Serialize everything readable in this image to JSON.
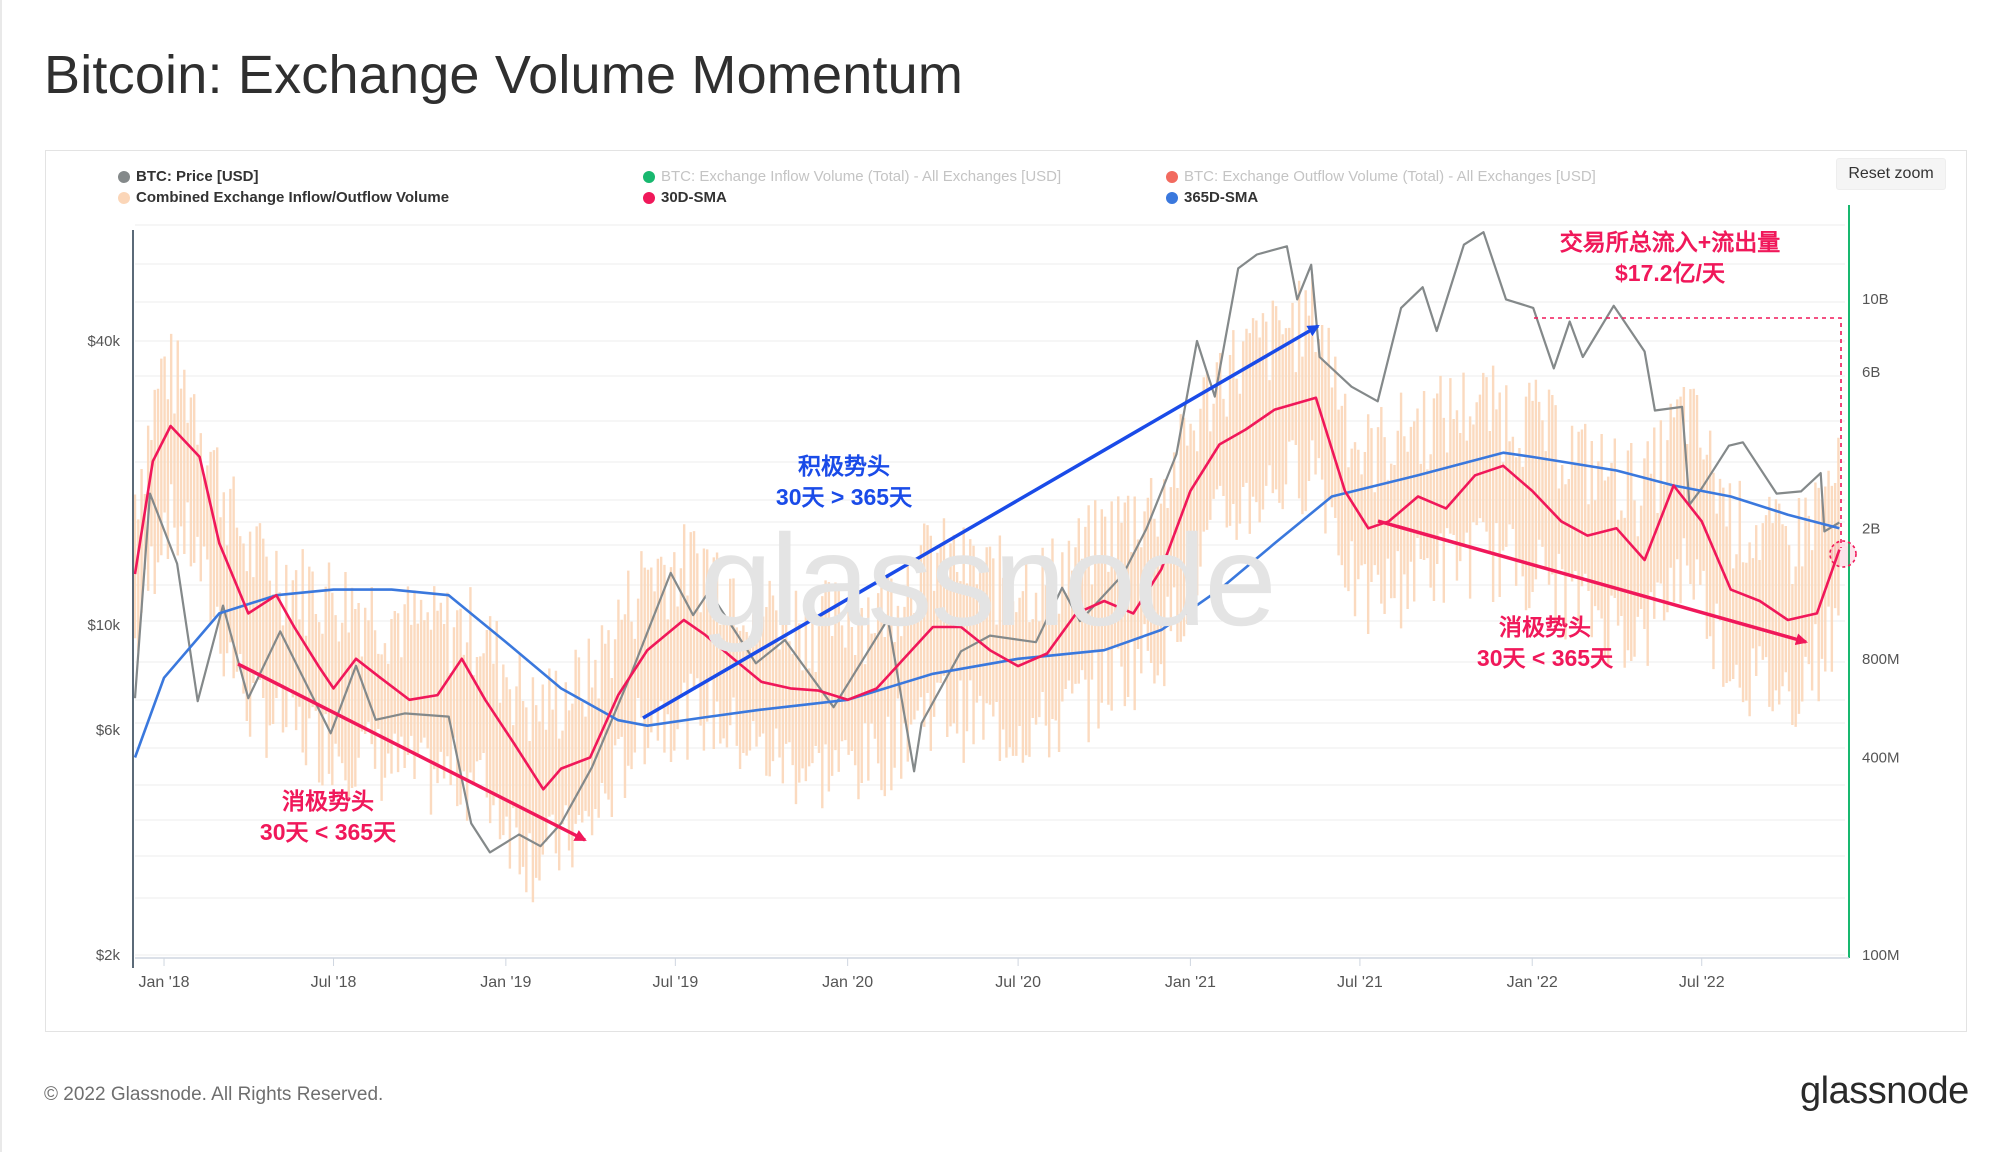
{
  "page": {
    "title": "Bitcoin: Exchange Volume Momentum",
    "reset_zoom": "Reset zoom",
    "watermark": "glassnode",
    "footer_copyright": "© 2022 Glassnode. All Rights Reserved.",
    "footer_logo": "glassnode"
  },
  "legend": [
    {
      "label": "BTC: Price [USD]",
      "color": "#84898a",
      "active": true
    },
    {
      "label": "BTC: Exchange Inflow Volume (Total) - All Exchanges [USD]",
      "color": "#18b86f",
      "active": false
    },
    {
      "label": "BTC: Exchange Outflow Volume (Total) - All Exchanges [USD]",
      "color": "#f26a5f",
      "active": false
    },
    {
      "label": "Combined Exchange Inflow/Outflow Volume",
      "color": "#fbd6b8",
      "active": true
    },
    {
      "label": "30D-SMA",
      "color": "#f0185a",
      "active": true
    },
    {
      "label": "365D-SMA",
      "color": "#3a78dd",
      "active": true
    }
  ],
  "annotations": {
    "neg1_line1": "消极势头",
    "neg1_line2": "30天 < 365天",
    "pos_line1": "积极势头",
    "pos_line2": "30天 > 365天",
    "neg2_line1": "消极势头",
    "neg2_line2": "30天 < 365天",
    "total_line1": "交易所总流入+流出量",
    "total_line2": "$17.2亿/天"
  },
  "chart_data": {
    "type": "line",
    "x_axis": {
      "type": "date",
      "range": [
        "2017-12-01",
        "2022-12-01"
      ],
      "ticks": [
        "Jan '18",
        "Jul '18",
        "Jan '19",
        "Jul '19",
        "Jan '20",
        "Jul '20",
        "Jan '21",
        "Jul '21",
        "Jan '22",
        "Jul '22"
      ]
    },
    "y_left": {
      "scale": "log",
      "unit": "USD",
      "ticks": [
        "$2k",
        "$6k",
        "$10k",
        "$40k"
      ],
      "range": [
        2000,
        80000
      ]
    },
    "y_right": {
      "scale": "log",
      "unit": "USD",
      "ticks": [
        "100M",
        "400M",
        "800M",
        "2B",
        "6B",
        "10B"
      ],
      "range": [
        100000000,
        15000000000
      ]
    },
    "series": [
      {
        "name": "BTC: Price [USD]",
        "axis": "left",
        "points": [
          [
            "2017-12-01",
            7000
          ],
          [
            "2017-12-17",
            19000
          ],
          [
            "2018-01-15",
            13500
          ],
          [
            "2018-02-06",
            6900
          ],
          [
            "2018-03-05",
            11000
          ],
          [
            "2018-04-01",
            7000
          ],
          [
            "2018-05-05",
            9700
          ],
          [
            "2018-06-28",
            5900
          ],
          [
            "2018-07-25",
            8200
          ],
          [
            "2018-08-15",
            6300
          ],
          [
            "2018-09-15",
            6500
          ],
          [
            "2018-11-01",
            6400
          ],
          [
            "2018-11-25",
            3800
          ],
          [
            "2018-12-15",
            3300
          ],
          [
            "2019-01-15",
            3600
          ],
          [
            "2019-02-07",
            3400
          ],
          [
            "2019-03-01",
            3800
          ],
          [
            "2019-04-03",
            5000
          ],
          [
            "2019-05-15",
            7900
          ],
          [
            "2019-06-26",
            12900
          ],
          [
            "2019-07-20",
            10500
          ],
          [
            "2019-08-06",
            11800
          ],
          [
            "2019-09-25",
            8300
          ],
          [
            "2019-10-26",
            9300
          ],
          [
            "2019-12-17",
            6700
          ],
          [
            "2020-02-13",
            10300
          ],
          [
            "2020-03-12",
            4900
          ],
          [
            "2020-03-20",
            6200
          ],
          [
            "2020-05-01",
            8800
          ],
          [
            "2020-06-01",
            9500
          ],
          [
            "2020-07-20",
            9200
          ],
          [
            "2020-08-17",
            12000
          ],
          [
            "2020-09-05",
            10200
          ],
          [
            "2020-10-21",
            12800
          ],
          [
            "2020-11-15",
            16000
          ],
          [
            "2020-12-17",
            23000
          ],
          [
            "2021-01-08",
            40000
          ],
          [
            "2021-01-27",
            30500
          ],
          [
            "2021-02-21",
            57000
          ],
          [
            "2021-03-13",
            61000
          ],
          [
            "2021-04-14",
            63500
          ],
          [
            "2021-04-25",
            49000
          ],
          [
            "2021-05-10",
            58000
          ],
          [
            "2021-05-19",
            37000
          ],
          [
            "2021-06-22",
            32000
          ],
          [
            "2021-07-20",
            29800
          ],
          [
            "2021-08-14",
            47000
          ],
          [
            "2021-09-06",
            52000
          ],
          [
            "2021-09-21",
            42000
          ],
          [
            "2021-10-20",
            64000
          ],
          [
            "2021-11-10",
            68000
          ],
          [
            "2021-12-04",
            49000
          ],
          [
            "2022-01-02",
            47000
          ],
          [
            "2022-01-24",
            35000
          ],
          [
            "2022-02-10",
            44000
          ],
          [
            "2022-02-24",
            37000
          ],
          [
            "2022-03-29",
            47500
          ],
          [
            "2022-05-01",
            38000
          ],
          [
            "2022-05-12",
            28500
          ],
          [
            "2022-06-10",
            29000
          ],
          [
            "2022-06-18",
            18000
          ],
          [
            "2022-07-01",
            19500
          ],
          [
            "2022-07-30",
            24000
          ],
          [
            "2022-08-14",
            24400
          ],
          [
            "2022-09-19",
            19000
          ],
          [
            "2022-10-15",
            19200
          ],
          [
            "2022-11-05",
            21000
          ],
          [
            "2022-11-09",
            15800
          ],
          [
            "2022-11-25",
            16500
          ]
        ]
      },
      {
        "name": "30D-SMA",
        "axis": "right",
        "points": [
          [
            "2017-12-01",
            1450000000
          ],
          [
            "2017-12-20",
            3200000000
          ],
          [
            "2018-01-08",
            4100000000
          ],
          [
            "2018-02-08",
            3300000000
          ],
          [
            "2018-03-01",
            1800000000
          ],
          [
            "2018-04-01",
            1100000000
          ],
          [
            "2018-05-01",
            1250000000
          ],
          [
            "2018-05-20",
            1000000000
          ],
          [
            "2018-06-15",
            760000000
          ],
          [
            "2018-07-01",
            650000000
          ],
          [
            "2018-07-25",
            800000000
          ],
          [
            "2018-08-20",
            700000000
          ],
          [
            "2018-09-20",
            600000000
          ],
          [
            "2018-10-20",
            620000000
          ],
          [
            "2018-11-15",
            800000000
          ],
          [
            "2018-12-10",
            600000000
          ],
          [
            "2019-01-10",
            440000000
          ],
          [
            "2019-02-10",
            320000000
          ],
          [
            "2019-03-01",
            370000000
          ],
          [
            "2019-04-01",
            400000000
          ],
          [
            "2019-05-01",
            620000000
          ],
          [
            "2019-06-01",
            850000000
          ],
          [
            "2019-07-10",
            1050000000
          ],
          [
            "2019-08-01",
            950000000
          ],
          [
            "2019-09-01",
            800000000
          ],
          [
            "2019-10-01",
            680000000
          ],
          [
            "2019-11-01",
            650000000
          ],
          [
            "2019-12-01",
            640000000
          ],
          [
            "2020-01-01",
            600000000
          ],
          [
            "2020-02-01",
            650000000
          ],
          [
            "2020-03-01",
            800000000
          ],
          [
            "2020-04-01",
            1000000000
          ],
          [
            "2020-05-01",
            1000000000
          ],
          [
            "2020-06-01",
            850000000
          ],
          [
            "2020-07-01",
            760000000
          ],
          [
            "2020-08-01",
            830000000
          ],
          [
            "2020-09-01",
            1100000000
          ],
          [
            "2020-10-01",
            1200000000
          ],
          [
            "2020-11-01",
            1100000000
          ],
          [
            "2020-12-01",
            1500000000
          ],
          [
            "2021-01-01",
            2600000000
          ],
          [
            "2021-02-01",
            3600000000
          ],
          [
            "2021-03-01",
            4000000000
          ],
          [
            "2021-04-01",
            4600000000
          ],
          [
            "2021-05-15",
            5000000000
          ],
          [
            "2021-06-15",
            2600000000
          ],
          [
            "2021-07-10",
            2000000000
          ],
          [
            "2021-08-01",
            2100000000
          ],
          [
            "2021-09-01",
            2500000000
          ],
          [
            "2021-10-01",
            2300000000
          ],
          [
            "2021-11-01",
            2900000000
          ],
          [
            "2021-12-01",
            3100000000
          ],
          [
            "2022-01-01",
            2600000000
          ],
          [
            "2022-02-01",
            2100000000
          ],
          [
            "2022-03-01",
            1900000000
          ],
          [
            "2022-04-01",
            2000000000
          ],
          [
            "2022-05-01",
            1600000000
          ],
          [
            "2022-06-01",
            2700000000
          ],
          [
            "2022-07-01",
            2100000000
          ],
          [
            "2022-08-01",
            1300000000
          ],
          [
            "2022-09-01",
            1200000000
          ],
          [
            "2022-10-01",
            1050000000
          ],
          [
            "2022-11-01",
            1100000000
          ],
          [
            "2022-11-25",
            1720000000
          ]
        ]
      },
      {
        "name": "365D-SMA",
        "axis": "right",
        "points": [
          [
            "2017-12-01",
            400000000
          ],
          [
            "2018-01-01",
            700000000
          ],
          [
            "2018-03-01",
            1100000000
          ],
          [
            "2018-05-01",
            1250000000
          ],
          [
            "2018-07-01",
            1300000000
          ],
          [
            "2018-09-01",
            1300000000
          ],
          [
            "2018-11-01",
            1250000000
          ],
          [
            "2019-01-01",
            900000000
          ],
          [
            "2019-03-01",
            650000000
          ],
          [
            "2019-05-01",
            520000000
          ],
          [
            "2019-06-01",
            500000000
          ],
          [
            "2019-08-01",
            530000000
          ],
          [
            "2019-10-01",
            560000000
          ],
          [
            "2020-01-01",
            600000000
          ],
          [
            "2020-04-01",
            720000000
          ],
          [
            "2020-07-01",
            800000000
          ],
          [
            "2020-10-01",
            850000000
          ],
          [
            "2020-12-01",
            980000000
          ],
          [
            "2021-02-01",
            1300000000
          ],
          [
            "2021-04-01",
            1800000000
          ],
          [
            "2021-06-01",
            2500000000
          ],
          [
            "2021-09-01",
            2900000000
          ],
          [
            "2021-12-01",
            3400000000
          ],
          [
            "2022-01-01",
            3300000000
          ],
          [
            "2022-04-01",
            3000000000
          ],
          [
            "2022-06-01",
            2700000000
          ],
          [
            "2022-08-01",
            2500000000
          ],
          [
            "2022-10-01",
            2200000000
          ],
          [
            "2022-11-25",
            2000000000
          ]
        ]
      },
      {
        "name": "Combined Exchange Inflow/Outflow Volume",
        "axis": "right",
        "points": [
          [
            "2017-12-01",
            1500000000
          ],
          [
            "2018-01-01",
            3800000000
          ],
          [
            "2018-02-01",
            3000000000
          ],
          [
            "2018-03-01",
            1700000000
          ],
          [
            "2018-04-01",
            1000000000
          ],
          [
            "2018-06-01",
            800000000
          ],
          [
            "2018-08-01",
            700000000
          ],
          [
            "2018-10-01",
            600000000
          ],
          [
            "2018-12-01",
            600000000
          ],
          [
            "2019-02-01",
            330000000
          ],
          [
            "2019-04-01",
            420000000
          ],
          [
            "2019-06-01",
            900000000
          ],
          [
            "2019-08-01",
            950000000
          ],
          [
            "2019-10-01",
            700000000
          ],
          [
            "2019-12-01",
            620000000
          ],
          [
            "2020-02-01",
            680000000
          ],
          [
            "2020-04-01",
            1000000000
          ],
          [
            "2020-06-01",
            850000000
          ],
          [
            "2020-08-01",
            840000000
          ],
          [
            "2020-10-01",
            1150000000
          ],
          [
            "2020-12-01",
            1500000000
          ],
          [
            "2021-02-01",
            3600000000
          ],
          [
            "2021-04-01",
            4600000000
          ],
          [
            "2021-05-15",
            5500000000
          ],
          [
            "2021-07-01",
            2000000000
          ],
          [
            "2021-09-01",
            2500000000
          ],
          [
            "2021-11-01",
            2900000000
          ],
          [
            "2022-01-01",
            2600000000
          ],
          [
            "2022-03-01",
            1900000000
          ],
          [
            "2022-05-01",
            1600000000
          ],
          [
            "2022-06-15",
            2800000000
          ],
          [
            "2022-08-01",
            1300000000
          ],
          [
            "2022-10-01",
            1050000000
          ],
          [
            "2022-11-25",
            1720000000
          ]
        ]
      }
    ],
    "grid": true
  }
}
